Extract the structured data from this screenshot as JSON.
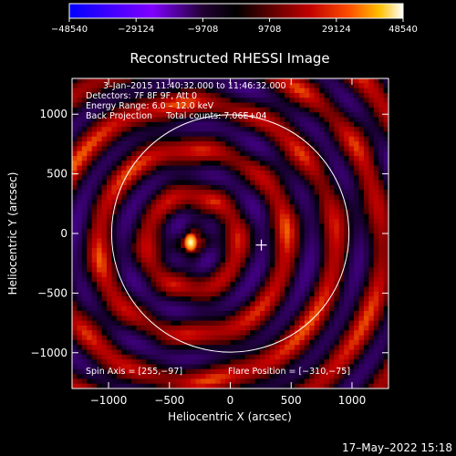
{
  "chart_data": {
    "type": "heatmap",
    "title": "Reconstructed RHESSI Image",
    "xlabel": "Heliocentric X (arcsec)",
    "ylabel": "Heliocentric Y (arcsec)",
    "xlim": [
      -1300,
      1300
    ],
    "ylim": [
      -1300,
      1300
    ],
    "x_ticks": [
      -1000,
      -500,
      0,
      500,
      1000
    ],
    "y_ticks": [
      -1000,
      -500,
      0,
      500,
      1000
    ],
    "x_tick_labels": [
      "−1000",
      "−500",
      "0",
      "500",
      "1000"
    ],
    "y_tick_labels": [
      "−1000",
      "−500",
      "0",
      "500",
      "1000"
    ],
    "colorbar": {
      "min": -48540,
      "max": 48540,
      "ticks": [
        -48540,
        -29124,
        -9708,
        9708,
        29124,
        48540
      ],
      "tick_labels": [
        "−48540",
        "−29124",
        "−9708",
        "9708",
        "29124",
        "48540"
      ],
      "colormap": [
        "#0000ff",
        "#3f00ff",
        "#7f00ff",
        "#220033",
        "#000000",
        "#5a0000",
        "#c00000",
        "#ff5000",
        "#ffc000",
        "#ffffff"
      ]
    },
    "info_lines": [
      "3–Jan–2015 11:40:32.000 to 11:46:32.000",
      "Detectors: 7F 8F 9F, Att 0",
      "Energy Range: 6.0 – 12.0 keV",
      "Back Projection     Total counts: 7.06E+04"
    ],
    "spin_axis_label": "Spin Axis = [255,−97]",
    "flare_position_label": "Flare Position = [−310,−75]",
    "spin_axis": [
      255,
      -97
    ],
    "flare_position": [
      -310,
      -75
    ],
    "solar_radius_arcsec": 975,
    "grid": false
  },
  "footer": {
    "timestamp": "17–May–2022 15:18"
  }
}
